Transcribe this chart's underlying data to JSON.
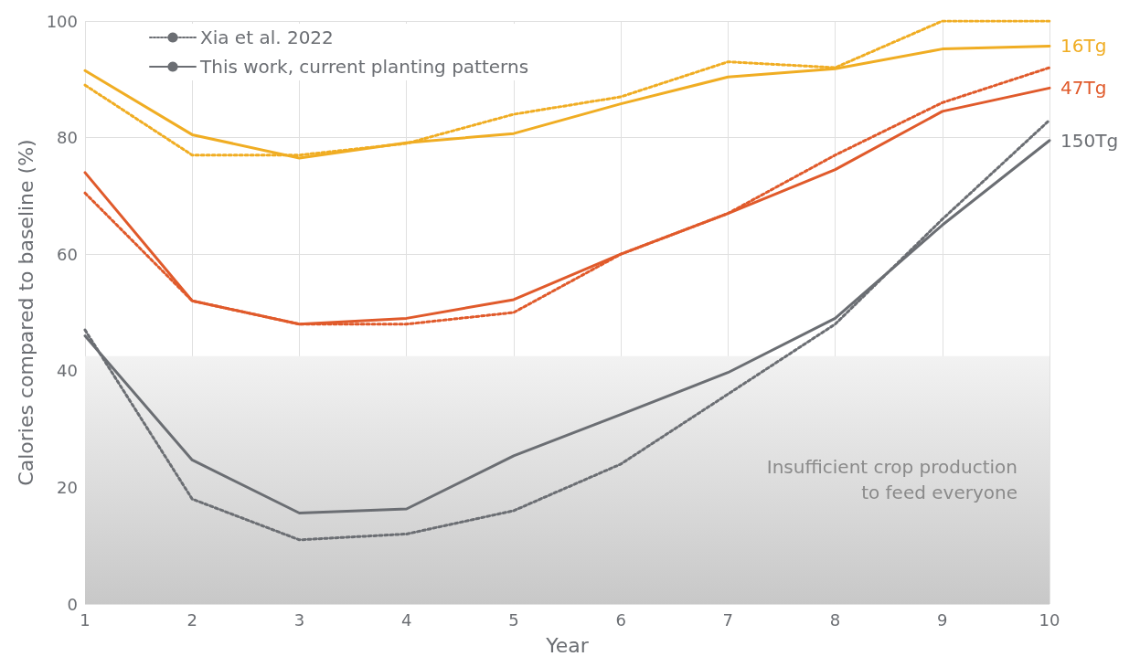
{
  "chart_data": {
    "type": "line",
    "xlabel": "Year",
    "ylabel": "Calories compared to baseline (%)",
    "x": [
      1,
      2,
      3,
      4,
      5,
      6,
      7,
      8,
      9,
      10
    ],
    "xlim": [
      1,
      10
    ],
    "xticks": [
      1,
      2,
      3,
      4,
      5,
      6,
      7,
      8,
      9,
      10
    ],
    "ylim": [
      0,
      100
    ],
    "yticks": [
      0,
      20,
      40,
      60,
      80,
      100
    ],
    "grid": true,
    "legend": "top left",
    "marker": "none",
    "series": [
      {
        "name": "Xia et al. 2022",
        "color": "#6b6e73",
        "line_style": "dotted",
        "values": [
          null,
          null,
          null,
          null,
          null,
          null,
          null,
          null,
          null,
          null
        ]
      },
      {
        "name": "This work, current planting patterns",
        "color": "#6b6e73",
        "line_style": "solid",
        "values": [
          null,
          null,
          null,
          null,
          null,
          null,
          null,
          null,
          null,
          null
        ]
      },
      {
        "color": "#f0ad23",
        "line_style": "dotted",
        "values": [
          89,
          77,
          77,
          79,
          84,
          87,
          93,
          92,
          100,
          100
        ]
      },
      {
        "name": "16Tg",
        "color": "#f0ad23",
        "line_style": "solid",
        "values": [
          91.5,
          80.5,
          76.5,
          79.1,
          80.7,
          85.8,
          90.4,
          91.8,
          95.2,
          95.7
        ]
      },
      {
        "color": "#e05a2b",
        "line_style": "dotted",
        "values": [
          70.5,
          52,
          48,
          48,
          50,
          60,
          67,
          77,
          86,
          92
        ]
      },
      {
        "name": "47Tg",
        "color": "#e05a2b",
        "line_style": "solid",
        "values": [
          74,
          52,
          48,
          49,
          52.2,
          60,
          67,
          74.5,
          84.5,
          88.5
        ]
      },
      {
        "color": "#6b6e73",
        "line_style": "dotted",
        "values": [
          47,
          18,
          11,
          12,
          16,
          24,
          36,
          48,
          66,
          83
        ]
      },
      {
        "name": "150Tg",
        "color": "#6b6e73",
        "line_style": "solid",
        "values": [
          46,
          24.7,
          15.6,
          16.3,
          25.4,
          32.5,
          39.7,
          49,
          65,
          79.5
        ]
      }
    ],
    "bands": [
      {
        "axis": "y",
        "from": 0,
        "to": 42.5,
        "label": "Insufficient crop production\nto feed everyone",
        "color": "#c8c8c8"
      }
    ]
  }
}
